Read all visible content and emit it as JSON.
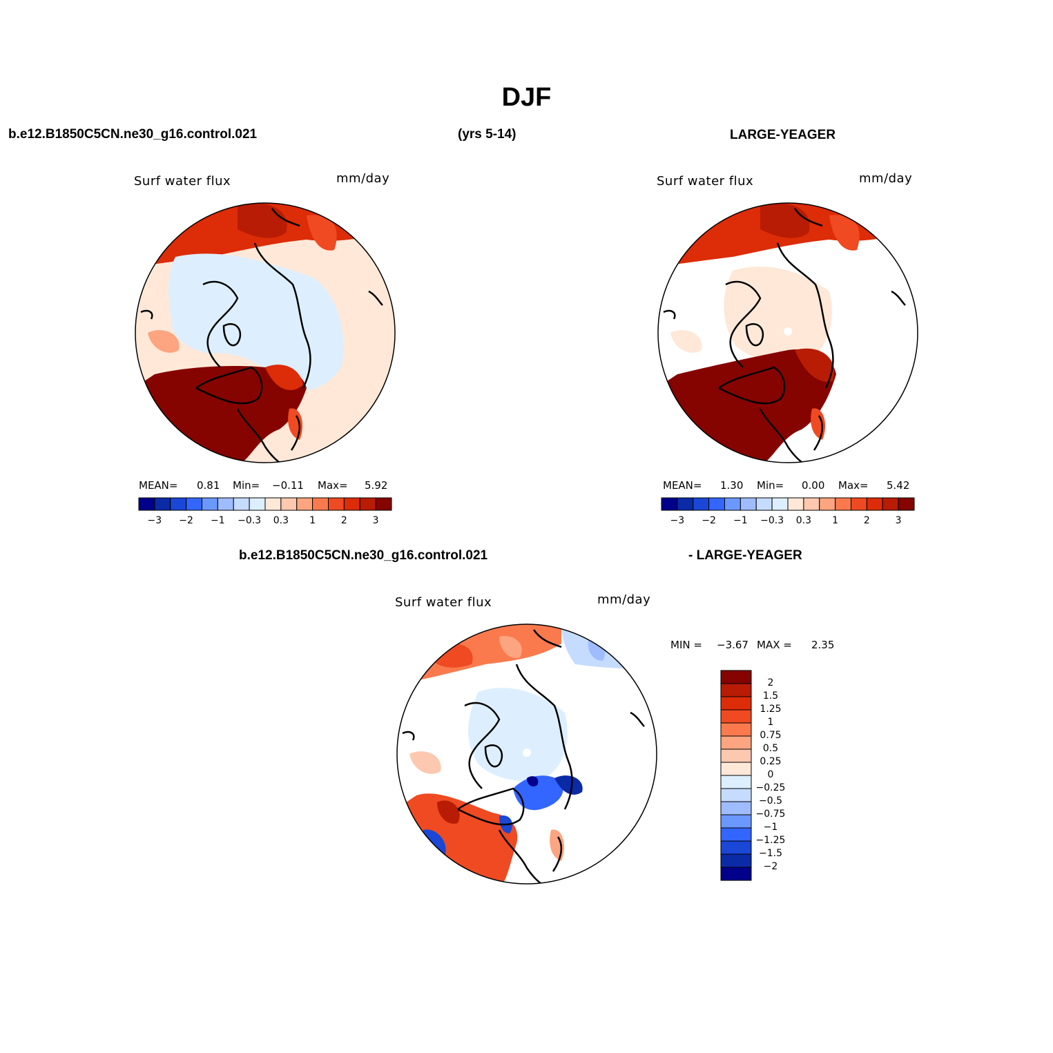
{
  "title": "DJF",
  "header": {
    "left_case": "b.e12.B1850C5CN.ne30_g16.control.021",
    "years": "(yrs 5-14)",
    "right_case": "LARGE-YEAGER",
    "diff_case_a": "b.e12.B1850C5CN.ne30_g16.control.021",
    "diff_case_b": "- LARGE-YEAGER"
  },
  "panels": [
    {
      "variable": "Surf water flux",
      "units": "mm/day",
      "stats": {
        "mean_label": "MEAN=",
        "mean": "0.81",
        "min_label": "Min=",
        "min": "−0.11",
        "max_label": "Max=",
        "max": "5.92"
      }
    },
    {
      "variable": "Surf water flux",
      "units": "mm/day",
      "stats": {
        "mean_label": "MEAN=",
        "mean": "1.30",
        "min_label": "Min=",
        "min": "0.00",
        "max_label": "Max=",
        "max": "5.42"
      }
    },
    {
      "variable": "Surf water flux",
      "units": "mm/day",
      "stats": {
        "min_label": "MIN =",
        "min": "−3.67",
        "max_label": "MAX =",
        "max": "2.35"
      }
    }
  ],
  "colorbar_top": {
    "colors": [
      "#00008b",
      "#0b2aa6",
      "#1a47d6",
      "#3366ff",
      "#6b98ff",
      "#9fbcff",
      "#c6dcff",
      "#ddefff",
      "#ffe8d8",
      "#fdc8b0",
      "#fca580",
      "#fa7a4e",
      "#ef4a22",
      "#dc2c08",
      "#b81c04",
      "#850400"
    ],
    "tick_labels": [
      "−3",
      "−2",
      "−1",
      "−0.3",
      "0.3",
      "1",
      "2",
      "3"
    ]
  },
  "colorbar_diff": {
    "colors": [
      "#850400",
      "#b81c04",
      "#dc2c08",
      "#ef4a22",
      "#fa7a4e",
      "#fca580",
      "#fdc8b0",
      "#ffe8d8",
      "#ddefff",
      "#c6dcff",
      "#9fbcff",
      "#6b98ff",
      "#3366ff",
      "#1a47d6",
      "#0b2aa6",
      "#00008b"
    ],
    "tick_labels": [
      "2",
      "1.5",
      "1.25",
      "1",
      "0.75",
      "0.5",
      "0.25",
      "0",
      "−0.25",
      "−0.5",
      "−0.75",
      "−1",
      "−1.25",
      "−1.5",
      "−2"
    ]
  }
}
